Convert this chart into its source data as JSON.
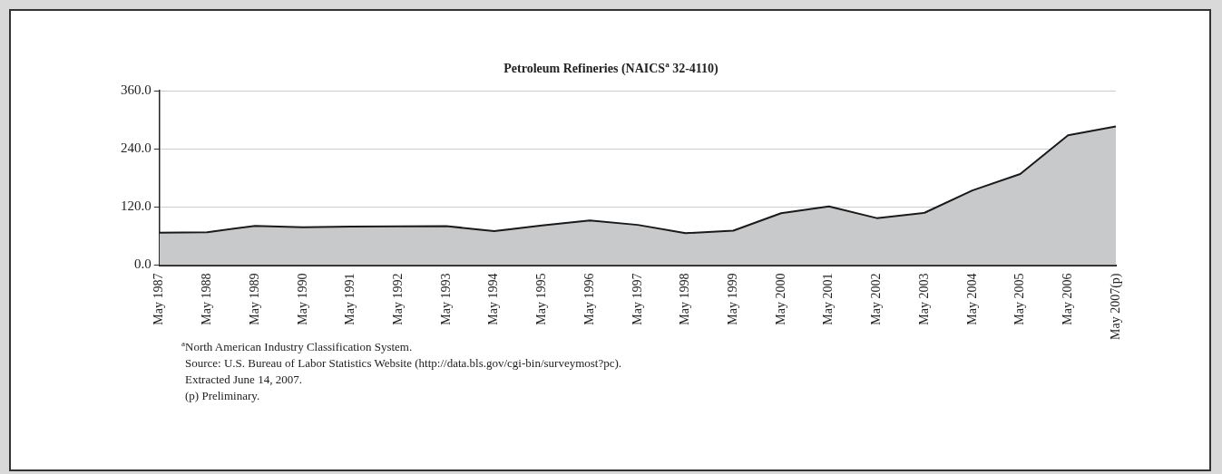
{
  "chart_data": {
    "type": "area",
    "title": "Petroleum Refineries (NAICS$^{a}$ 32-4110)",
    "categories": [
      "May 1987",
      "May 1988",
      "May 1989",
      "May 1990",
      "May 1991",
      "May 1992",
      "May 1993",
      "May 1994",
      "May 1995",
      "May 1996",
      "May 1997",
      "May 1998",
      "May 1999",
      "May 2000",
      "May 2001",
      "May 2002",
      "May 2003",
      "May 2004",
      "May 2005",
      "May 2006",
      "May 2007(p)"
    ],
    "series": [
      {
        "color": "#c8c9cb",
        "values": [
          67,
          68,
          81,
          78,
          79.5,
          80,
          80.5,
          70,
          82,
          92,
          83,
          66,
          71,
          107,
          121,
          97,
          108,
          154,
          188,
          268,
          286
        ]
      }
    ],
    "ylim": [
      0,
      360
    ],
    "yticks": [
      {
        "value": 0,
        "label": "0.0"
      },
      {
        "value": 120,
        "label": "120.0"
      },
      {
        "value": 240,
        "label": "240.0"
      },
      {
        "value": 360,
        "label": "360.0"
      }
    ],
    "grid": "y",
    "legend": false,
    "annotations": [
      "$^{a}$North American Industry Classification System.",
      "Source: U.S. Bureau of Labor Statistics Website (http://data.bls.gov/cgi-bin/surveymost?pc).",
      "Extracted June 14, 2007.",
      "(p) Preliminary."
    ]
  }
}
